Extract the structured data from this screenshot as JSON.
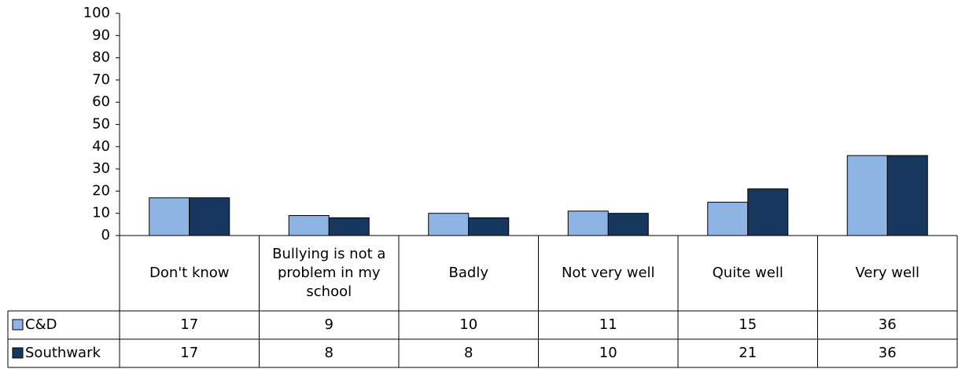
{
  "chart_data": {
    "type": "bar",
    "categories": [
      "Don't know",
      "Bullying is not a problem in my school",
      "Badly",
      "Not very well",
      "Quite well",
      "Very well"
    ],
    "series": [
      {
        "name": "C&D",
        "color": "#8eb4e3",
        "values": [
          17,
          9,
          10,
          11,
          15,
          36
        ]
      },
      {
        "name": "Southwark",
        "color": "#17375e",
        "values": [
          17,
          8,
          8,
          10,
          21,
          36
        ]
      }
    ],
    "ylim": [
      0,
      100
    ],
    "yticks": [
      0,
      10,
      20,
      30,
      40,
      50,
      60,
      70,
      80,
      90,
      100
    ],
    "grid": false,
    "data_table": true
  }
}
